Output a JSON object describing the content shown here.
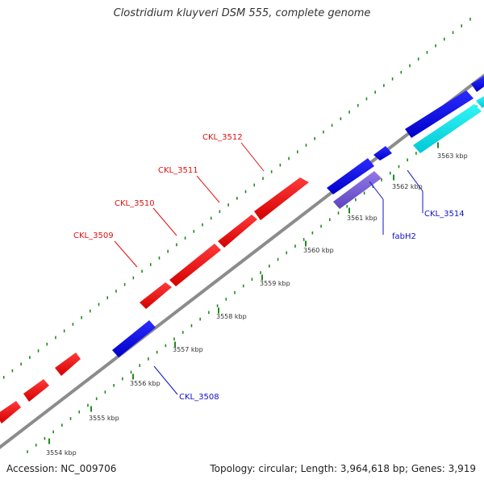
{
  "title": "Clostridium kluyveri DSM 555, complete genome",
  "footer": {
    "accession": "Accession: NC_009706",
    "stats": "Topology: circular; Length: 3,964,618 bp; Genes: 3,919"
  },
  "colors": {
    "backbone": "#808080",
    "tick": "#1e8a1e",
    "forward_gene": "#ff1a1a",
    "reverse_gene": "#1010ee",
    "reverse_gene_2": "#7a5ad0",
    "rna_gene": "#00e5e5",
    "label_forward": "#e01010",
    "label_reverse": "#1010cc"
  },
  "kbp_labels": [
    "3554 kbp",
    "3555 kbp",
    "3556 kbp",
    "3557 kbp",
    "3558 kbp",
    "3559 kbp",
    "3560 kbp",
    "3561 kbp",
    "3562 kbp",
    "3563 kbp"
  ],
  "gene_labels": [
    "CKL_3509",
    "CKL_3510",
    "CKL_3511",
    "CKL_3512",
    "CKL_3508",
    "fabH2",
    "CKL_3514"
  ]
}
